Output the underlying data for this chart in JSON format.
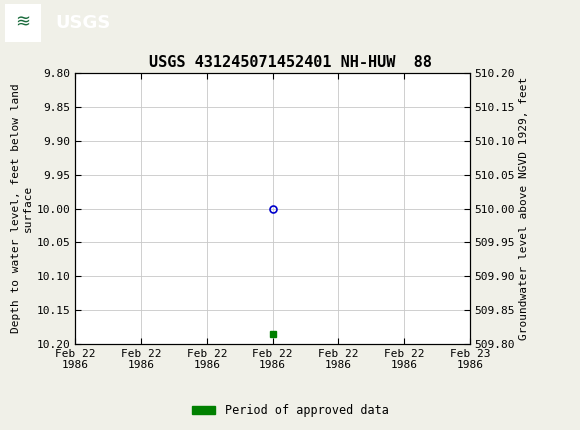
{
  "title": "USGS 431245071452401 NH-HUW  88",
  "title_fontsize": 11,
  "background_color": "#f0f0e8",
  "plot_bg_color": "#ffffff",
  "header_color": "#1a6b3c",
  "left_ylabel": "Depth to water level, feet below land\nsurface",
  "right_ylabel": "Groundwater level above NGVD 1929, feet",
  "ylabel_fontsize": 8,
  "ylim_left_top": 9.8,
  "ylim_left_bottom": 10.2,
  "ylim_right_top": 510.2,
  "ylim_right_bottom": 509.8,
  "yticks_left": [
    9.8,
    9.85,
    9.9,
    9.95,
    10.0,
    10.05,
    10.1,
    10.15,
    10.2
  ],
  "ytick_labels_left": [
    "9.80",
    "9.85",
    "9.90",
    "9.95",
    "10.00",
    "10.05",
    "10.10",
    "10.15",
    "10.20"
  ],
  "yticks_right": [
    510.2,
    510.15,
    510.1,
    510.05,
    510.0,
    509.95,
    509.9,
    509.85,
    509.8
  ],
  "ytick_labels_right": [
    "510.20",
    "510.15",
    "510.10",
    "510.05",
    "510.00",
    "509.95",
    "509.90",
    "509.85",
    "509.80"
  ],
  "data_point_x_hours": 12,
  "data_point_y": 10.0,
  "data_point_color": "#0000cc",
  "data_point_markersize": 5,
  "green_marker_x_hours": 12,
  "green_marker_y": 10.185,
  "green_marker_color": "#008000",
  "green_marker_markersize": 4,
  "xtick_hours": [
    0,
    4,
    8,
    12,
    16,
    20,
    24
  ],
  "xtick_labels": [
    "Feb 22\n1986",
    "Feb 22\n1986",
    "Feb 22\n1986",
    "Feb 22\n1986",
    "Feb 22\n1986",
    "Feb 22\n1986",
    "Feb 23\n1986"
  ],
  "grid_color": "#c8c8c8",
  "tick_fontsize": 8,
  "legend_label": "Period of approved data",
  "legend_color": "#008000",
  "font_family": "monospace"
}
